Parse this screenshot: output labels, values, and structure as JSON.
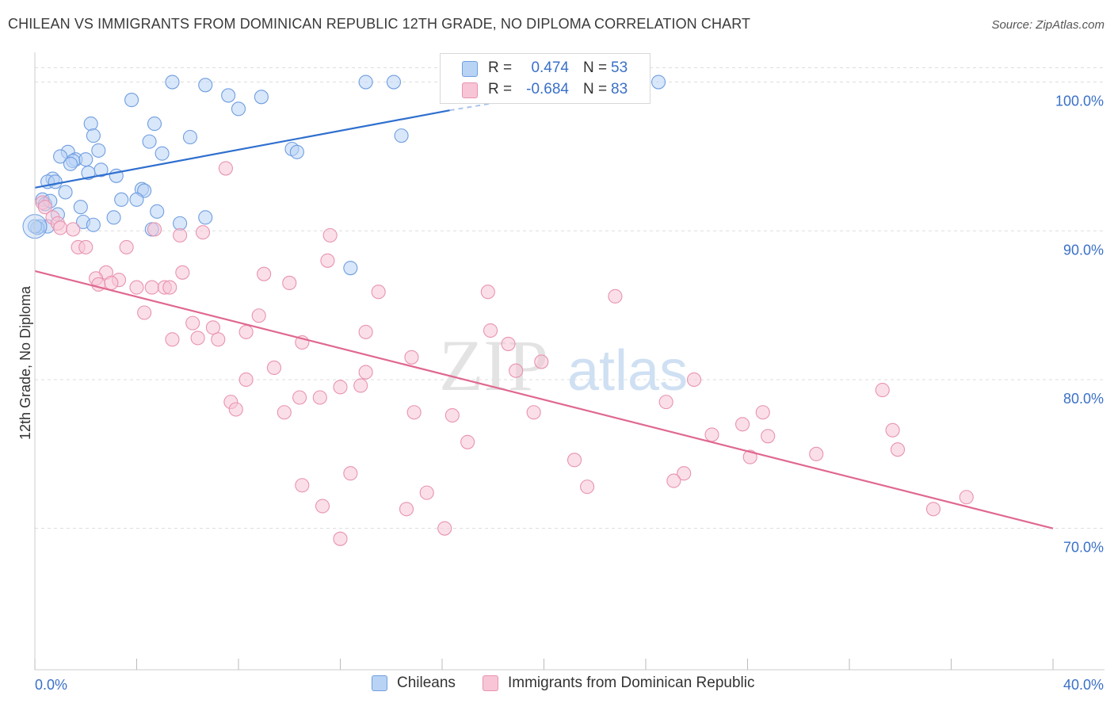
{
  "title": "CHILEAN VS IMMIGRANTS FROM DOMINICAN REPUBLIC 12TH GRADE, NO DIPLOMA CORRELATION CHART",
  "source": "Source: ZipAtlas.com",
  "watermark": {
    "zip": "ZIP",
    "atlas": "atlas"
  },
  "colors": {
    "blue_fill": "#b9d3f5",
    "blue_stroke": "#6f9ee0",
    "blue_line": "#2f6fcf",
    "pink_fill": "#f7c5d6",
    "pink_stroke": "#e893b0",
    "pink_line": "#e0688f",
    "axis_text": "#3a70c8",
    "grid": "#dddddd"
  },
  "stats": [
    {
      "r_label": "R =",
      "r_value": "0.474",
      "n_label": "N =",
      "n_value": "53",
      "color": "blue"
    },
    {
      "r_label": "R =",
      "r_value": "-0.684",
      "n_label": "N =",
      "n_value": "83",
      "color": "pink"
    }
  ],
  "legend": [
    {
      "label": "Chileans",
      "color": "blue"
    },
    {
      "label": "Immigrants from Dominican Republic",
      "color": "pink"
    }
  ],
  "chart_data": {
    "type": "scatter",
    "xlabel": "",
    "ylabel": "12th Grade, No Diploma",
    "xlim": [
      0,
      40
    ],
    "ylim": [
      60.5,
      102
    ],
    "x_tick_labels": [
      {
        "value": 0,
        "label": "0.0%"
      },
      {
        "value": 40,
        "label": "40.0%"
      }
    ],
    "x_minor_ticks": [
      0,
      4,
      8,
      12,
      16,
      20,
      24,
      28,
      32,
      36,
      40
    ],
    "y_ticks": [
      {
        "value": 70,
        "label": "70.0%"
      },
      {
        "value": 80,
        "label": "80.0%"
      },
      {
        "value": 90,
        "label": "90.0%"
      },
      {
        "value": 100,
        "label": "100.0%"
      }
    ],
    "grid": true,
    "legend_position": "bottom",
    "series": [
      {
        "name": "Chileans",
        "color": "blue",
        "trend": {
          "x": [
            0,
            16.3
          ],
          "y": [
            92.9,
            98.1
          ]
        },
        "trend_dashed": {
          "x": [
            16.3,
            23.0
          ],
          "y": [
            98.1,
            100.0
          ]
        },
        "points": [
          [
            5.4,
            100.0
          ],
          [
            6.7,
            99.8
          ],
          [
            13.0,
            100.0
          ],
          [
            14.1,
            100.0
          ],
          [
            24.5,
            100.0
          ],
          [
            3.8,
            98.8
          ],
          [
            7.6,
            99.1
          ],
          [
            8.9,
            99.0
          ],
          [
            8.0,
            98.2
          ],
          [
            2.2,
            97.2
          ],
          [
            4.7,
            97.2
          ],
          [
            2.3,
            96.4
          ],
          [
            6.1,
            96.3
          ],
          [
            14.4,
            96.4
          ],
          [
            4.5,
            96.0
          ],
          [
            2.5,
            95.4
          ],
          [
            1.3,
            95.3
          ],
          [
            10.1,
            95.5
          ],
          [
            10.3,
            95.3
          ],
          [
            5.0,
            95.2
          ],
          [
            1.6,
            94.8
          ],
          [
            2.0,
            94.8
          ],
          [
            1.5,
            94.7
          ],
          [
            1.0,
            95.0
          ],
          [
            1.4,
            94.5
          ],
          [
            2.6,
            94.1
          ],
          [
            2.1,
            93.9
          ],
          [
            3.2,
            93.7
          ],
          [
            0.7,
            93.5
          ],
          [
            0.5,
            93.3
          ],
          [
            0.8,
            93.3
          ],
          [
            4.2,
            92.8
          ],
          [
            4.3,
            92.7
          ],
          [
            1.2,
            92.6
          ],
          [
            0.3,
            92.1
          ],
          [
            3.4,
            92.1
          ],
          [
            4.0,
            92.1
          ],
          [
            0.4,
            91.8
          ],
          [
            1.8,
            91.6
          ],
          [
            4.8,
            91.3
          ],
          [
            0.9,
            91.1
          ],
          [
            6.7,
            90.9
          ],
          [
            1.9,
            90.6
          ],
          [
            5.7,
            90.5
          ],
          [
            2.3,
            90.4
          ],
          [
            0.5,
            90.3
          ],
          [
            0.2,
            90.3
          ],
          [
            0.1,
            90.2
          ],
          [
            4.6,
            90.1
          ],
          [
            0.0,
            90.3
          ],
          [
            12.4,
            87.5
          ],
          [
            3.1,
            90.9
          ],
          [
            0.6,
            92.0
          ]
        ]
      },
      {
        "name": "Immigrants from Dominican Republic",
        "color": "pink",
        "trend": {
          "x": [
            0,
            40
          ],
          "y": [
            87.3,
            70.0
          ]
        },
        "points": [
          [
            7.5,
            94.2
          ],
          [
            0.3,
            91.9
          ],
          [
            0.4,
            91.6
          ],
          [
            0.7,
            90.9
          ],
          [
            0.9,
            90.5
          ],
          [
            1.0,
            90.2
          ],
          [
            1.5,
            90.1
          ],
          [
            4.7,
            90.1
          ],
          [
            5.7,
            89.7
          ],
          [
            6.6,
            89.9
          ],
          [
            11.6,
            89.7
          ],
          [
            1.7,
            88.9
          ],
          [
            2.0,
            88.9
          ],
          [
            3.6,
            88.9
          ],
          [
            11.5,
            88.0
          ],
          [
            5.8,
            87.2
          ],
          [
            9.0,
            87.1
          ],
          [
            2.8,
            87.2
          ],
          [
            2.4,
            86.8
          ],
          [
            3.3,
            86.7
          ],
          [
            10.0,
            86.5
          ],
          [
            2.5,
            86.4
          ],
          [
            3.0,
            86.5
          ],
          [
            4.0,
            86.2
          ],
          [
            4.6,
            86.2
          ],
          [
            5.1,
            86.2
          ],
          [
            5.3,
            86.2
          ],
          [
            13.5,
            85.9
          ],
          [
            17.8,
            85.9
          ],
          [
            22.8,
            85.6
          ],
          [
            4.3,
            84.5
          ],
          [
            8.8,
            84.3
          ],
          [
            6.2,
            83.8
          ],
          [
            7.0,
            83.5
          ],
          [
            8.3,
            83.2
          ],
          [
            13.0,
            83.2
          ],
          [
            17.9,
            83.3
          ],
          [
            5.4,
            82.7
          ],
          [
            6.4,
            82.8
          ],
          [
            7.2,
            82.7
          ],
          [
            10.5,
            82.5
          ],
          [
            18.6,
            82.4
          ],
          [
            14.8,
            81.5
          ],
          [
            19.9,
            81.2
          ],
          [
            9.4,
            80.8
          ],
          [
            13.0,
            80.5
          ],
          [
            18.9,
            80.6
          ],
          [
            8.3,
            80.0
          ],
          [
            12.0,
            79.5
          ],
          [
            12.8,
            79.6
          ],
          [
            25.9,
            80.0
          ],
          [
            33.3,
            79.3
          ],
          [
            10.4,
            78.8
          ],
          [
            11.2,
            78.8
          ],
          [
            7.7,
            78.5
          ],
          [
            24.8,
            78.5
          ],
          [
            7.9,
            78.0
          ],
          [
            9.8,
            77.8
          ],
          [
            14.9,
            77.8
          ],
          [
            16.4,
            77.6
          ],
          [
            19.6,
            77.8
          ],
          [
            28.6,
            77.8
          ],
          [
            27.8,
            77.0
          ],
          [
            26.6,
            76.3
          ],
          [
            28.8,
            76.2
          ],
          [
            33.7,
            76.6
          ],
          [
            17.0,
            75.8
          ],
          [
            33.9,
            75.3
          ],
          [
            30.7,
            75.0
          ],
          [
            28.1,
            74.8
          ],
          [
            21.2,
            74.6
          ],
          [
            12.4,
            73.7
          ],
          [
            25.5,
            73.7
          ],
          [
            25.1,
            73.2
          ],
          [
            10.5,
            72.9
          ],
          [
            21.7,
            72.8
          ],
          [
            15.4,
            72.4
          ],
          [
            11.3,
            71.5
          ],
          [
            14.6,
            71.3
          ],
          [
            35.3,
            71.3
          ],
          [
            36.6,
            72.1
          ],
          [
            16.1,
            70.0
          ],
          [
            12.0,
            69.3
          ]
        ]
      }
    ]
  }
}
